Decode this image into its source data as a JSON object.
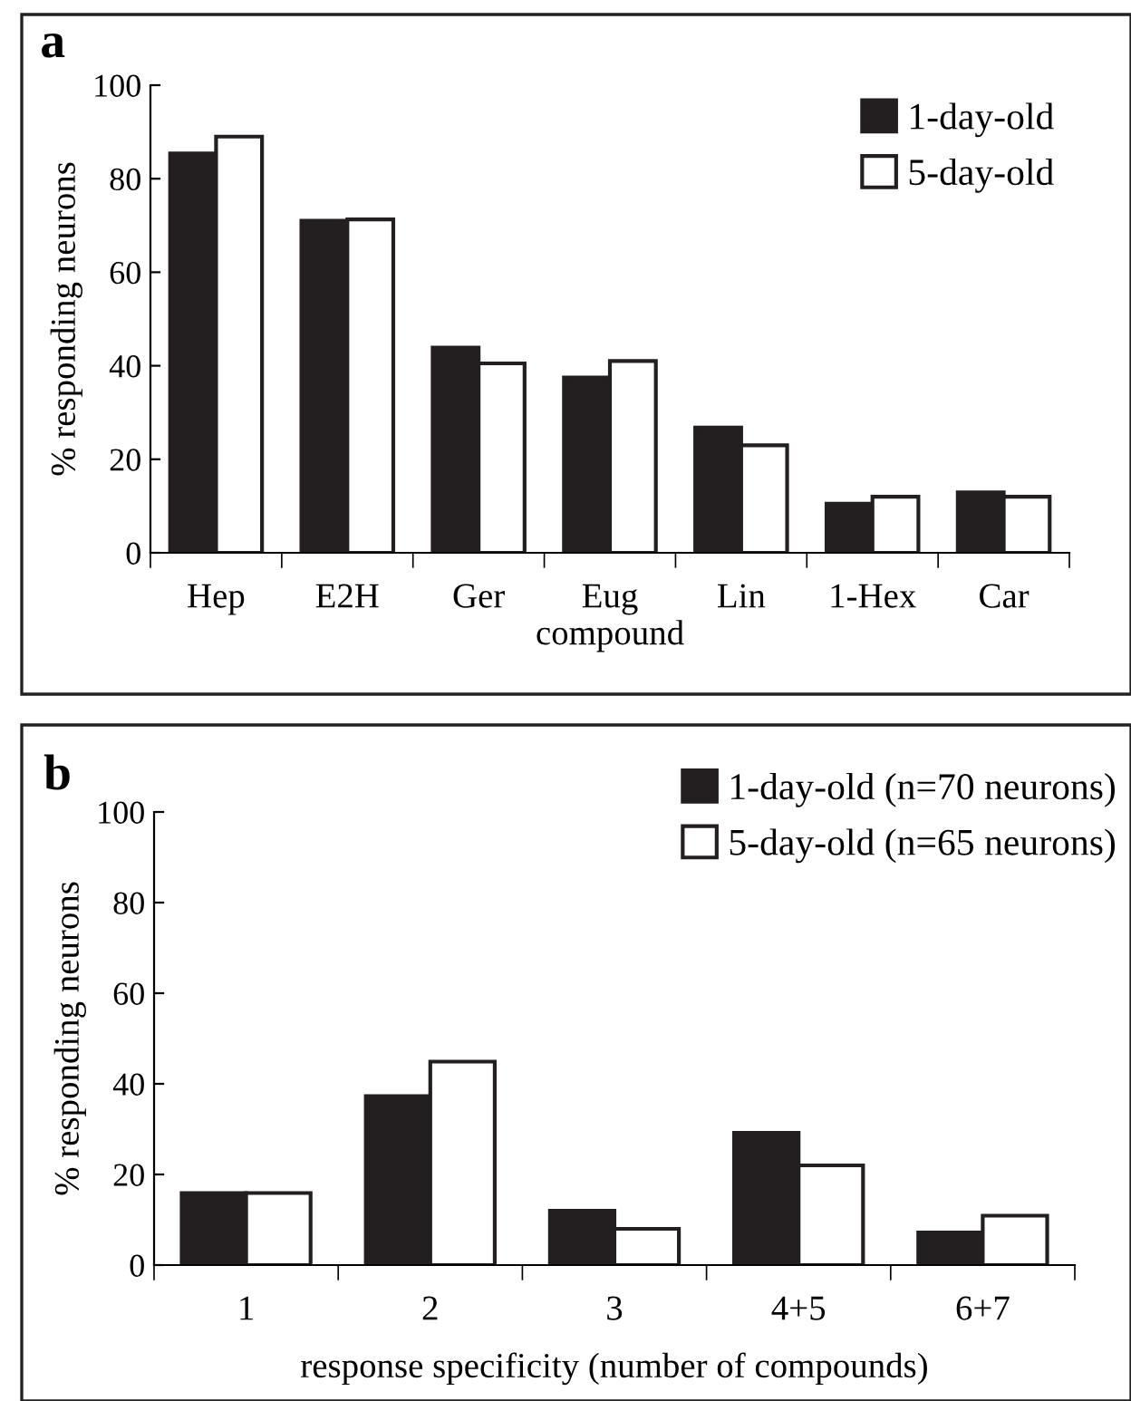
{
  "chart_data": [
    {
      "type": "bar",
      "categories": [
        "Hep",
        "E2H",
        "Ger",
        "Eug",
        "Lin",
        "1-Hex",
        "Car"
      ],
      "xlabel": "compound",
      "ylabel": "% responding neurons",
      "ylim": [
        0,
        100
      ],
      "yticks": [
        0,
        20,
        40,
        60,
        80,
        100
      ],
      "grid": false,
      "legend": "top right",
      "annotations": [
        "a"
      ],
      "series": [
        {
          "name": "1-day-old",
          "color": "#231f20",
          "values": [
            85.4,
            71,
            43.9,
            37.5,
            26.8,
            10.5,
            12.9
          ]
        },
        {
          "name": "5-day-old",
          "color": "#ffffff",
          "values": [
            89,
            71.3,
            40.5,
            41,
            23,
            12,
            12
          ]
        }
      ]
    },
    {
      "type": "bar",
      "categories": [
        "1",
        "2",
        "3",
        "4+5",
        "6+7"
      ],
      "xlabel": "response specificity (number of compounds)",
      "ylabel": "% responding neurons",
      "ylim": [
        0,
        100
      ],
      "yticks": [
        0,
        20,
        40,
        60,
        80,
        100
      ],
      "grid": false,
      "legend": "top right",
      "annotations": [
        "b"
      ],
      "series": [
        {
          "name": "1-day-old (n=70 neurons)",
          "color": "#231f20",
          "values": [
            15.9,
            37.3,
            12,
            29.2,
            7.2
          ]
        },
        {
          "name": "5-day-old (n=65 neurons)",
          "color": "#ffffff",
          "values": [
            15.9,
            44.9,
            8,
            22,
            10.9
          ]
        }
      ]
    }
  ]
}
